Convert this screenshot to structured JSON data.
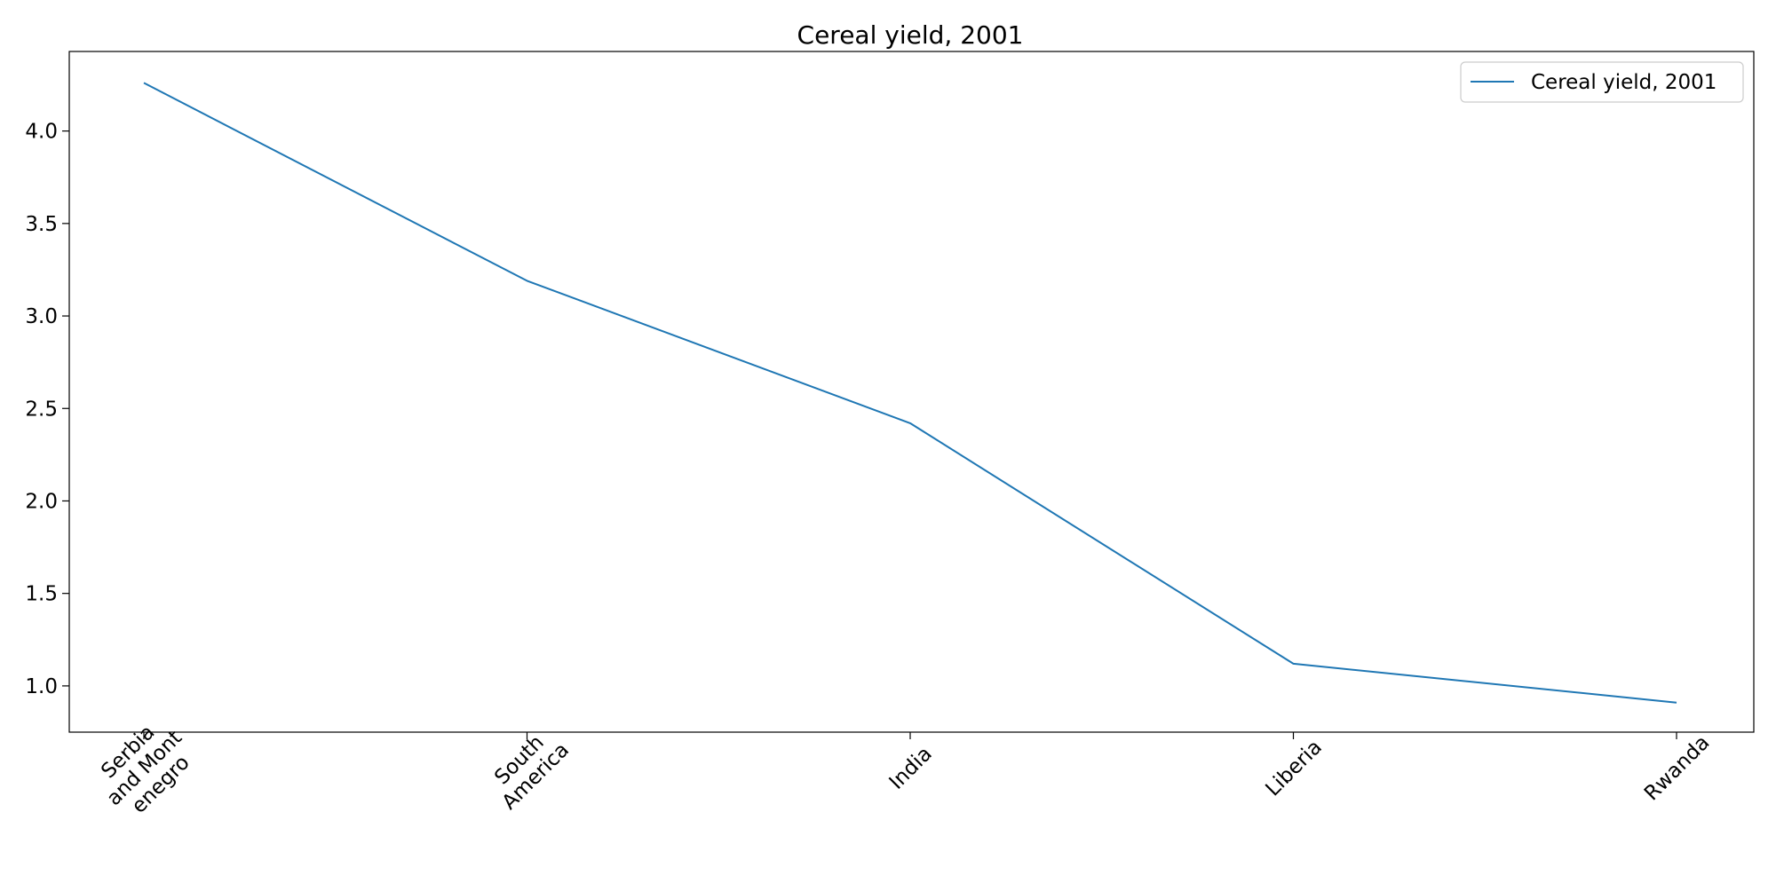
{
  "chart_data": {
    "type": "line",
    "title": "Cereal yield, 2001",
    "xlabel": "",
    "ylabel": "",
    "categories": [
      [
        "Serbia",
        "and Mont",
        "enegro"
      ],
      [
        "South",
        "America"
      ],
      [
        "India"
      ],
      [
        "Liberia"
      ],
      [
        "Rwanda"
      ]
    ],
    "series": [
      {
        "name": "Cereal yield, 2001",
        "color": "#1f77b4",
        "values": [
          4.26,
          3.19,
          2.42,
          1.12,
          0.91
        ]
      }
    ],
    "ylim": [
      0.75,
      4.43
    ],
    "yticks": [
      "1.0",
      "1.5",
      "2.0",
      "2.5",
      "3.0",
      "3.5",
      "4.0"
    ],
    "grid": false,
    "legend_position": "top-right",
    "x_tick_rotation_deg": -45
  }
}
